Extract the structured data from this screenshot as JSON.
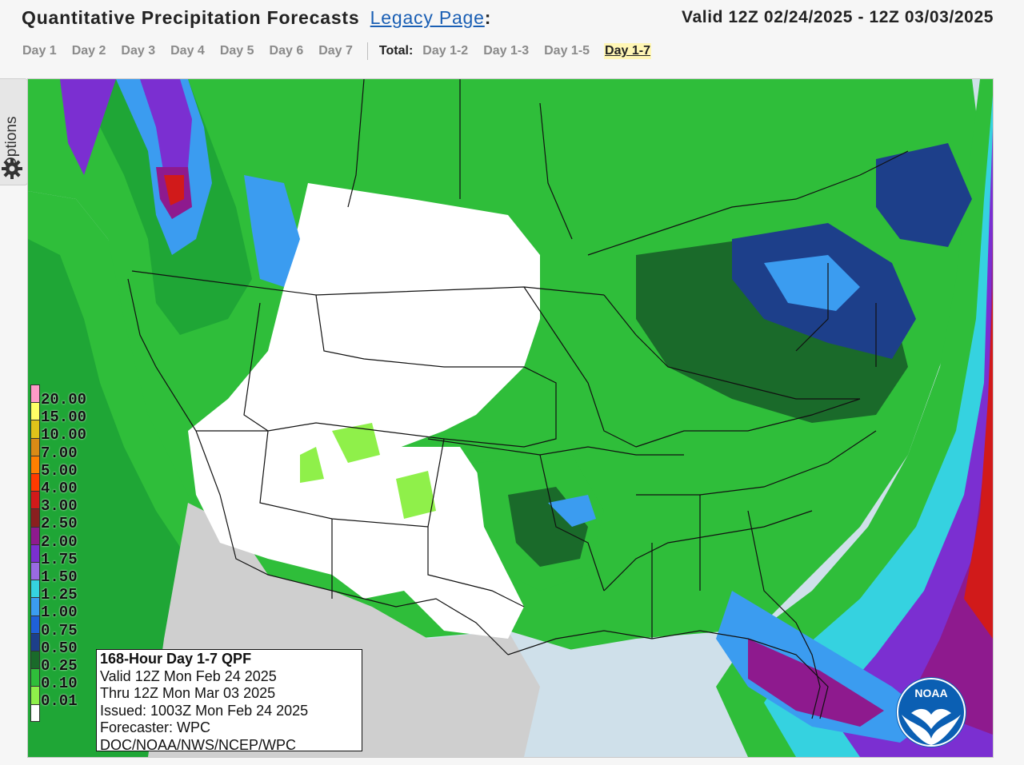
{
  "header": {
    "title": "Quantitative Precipitation Forecasts",
    "legacy_link": "Legacy Page",
    "colon": ":",
    "valid_range": "Valid 12Z 02/24/2025 - 12Z 03/03/2025"
  },
  "days": [
    "Day 1",
    "Day 2",
    "Day 3",
    "Day 4",
    "Day 5",
    "Day 6",
    "Day 7"
  ],
  "totals": {
    "label": "Total:",
    "items": [
      "Day 1-2",
      "Day 1-3",
      "Day 1-5"
    ],
    "active": "Day 1-7"
  },
  "options": {
    "label": "Options"
  },
  "legend": {
    "values": [
      "20.00",
      "15.00",
      "10.00",
      "7.00",
      "5.00",
      "4.00",
      "3.00",
      "2.50",
      "2.00",
      "1.75",
      "1.50",
      "1.25",
      "1.00",
      "0.75",
      "0.50",
      "0.25",
      "0.10",
      "0.01"
    ],
    "colors": [
      "#ff9ac8",
      "#ffff66",
      "#e0c21a",
      "#d98a16",
      "#ff7f00",
      "#ff3a00",
      "#d11a1a",
      "#8a1f1f",
      "#8e1a8e",
      "#7b2fd1",
      "#9a6ae2",
      "#35d2e0",
      "#3b9cf0",
      "#1f60d8",
      "#1d3f8a",
      "#1a6a2a",
      "#2fbe3a",
      "#8ff04a"
    ]
  },
  "info": {
    "title": "168-Hour Day 1-7 QPF",
    "valid": "Valid 12Z Mon Feb 24 2025",
    "thru": "Thru 12Z Mon Mar 03 2025",
    "issued": "Issued: 1003Z Mon Feb 24 2025",
    "forecaster": "Forecaster: WPC",
    "org": "DOC/NOAA/NWS/NCEP/WPC"
  },
  "noaa_logo": {
    "text": "NOAA"
  },
  "colors": {
    "water": "#cfe0ea",
    "dry_land": "#ffffff",
    "mexico": "#cfcfcf",
    "light_green": "#8ff04a",
    "green": "#2fbe3a",
    "dark_green": "#1a6a2a",
    "navy": "#1d3f8a",
    "blue": "#3b9cf0",
    "purple": "#8e1a8e",
    "red": "#d11a1a"
  }
}
